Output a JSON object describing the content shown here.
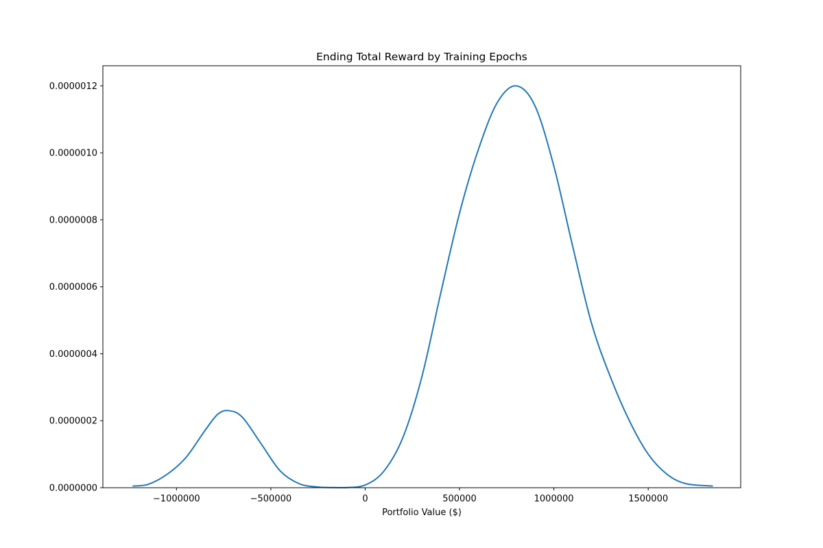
{
  "chart_data": {
    "type": "line",
    "title": "Ending Total Reward by Training Epochs",
    "xlabel": "Portfolio Value ($)",
    "ylabel": "",
    "xlim": [
      -1390000,
      1990000
    ],
    "ylim": [
      0,
      1.26e-06
    ],
    "x_ticks": [
      -1000000,
      -500000,
      0,
      500000,
      1000000,
      1500000
    ],
    "x_tick_labels": [
      "−1000000",
      "−500000",
      "0",
      "500000",
      "1000000",
      "1500000"
    ],
    "y_ticks": [
      0,
      2e-07,
      4e-07,
      6e-07,
      8e-07,
      1e-06,
      1.2e-06
    ],
    "y_tick_labels": [
      "0.0000000",
      "0.0000002",
      "0.0000004",
      "0.0000006",
      "0.0000008",
      "0.0000010",
      "0.0000012"
    ],
    "grid": false,
    "series": [
      {
        "color": "#1f77b4",
        "x": [
          -1230000,
          -1150000,
          -1050000,
          -950000,
          -850000,
          -780000,
          -720000,
          -650000,
          -550000,
          -450000,
          -350000,
          -250000,
          -150000,
          -100000,
          0,
          100000,
          200000,
          300000,
          400000,
          500000,
          600000,
          700000,
          800000,
          900000,
          1000000,
          1100000,
          1200000,
          1300000,
          1400000,
          1500000,
          1600000,
          1700000,
          1840000
        ],
        "y": [
          5e-09,
          1e-08,
          4e-08,
          9e-08,
          1.7e-07,
          2.2e-07,
          2.3e-07,
          2.1e-07,
          1.3e-07,
          5e-08,
          1.2e-08,
          2e-09,
          3e-10,
          3e-10,
          8e-09,
          5e-08,
          1.5e-07,
          3.3e-07,
          5.8e-07,
          8.2e-07,
          1.01e-06,
          1.15e-06,
          1.2e-06,
          1.14e-06,
          9.6e-07,
          7.2e-07,
          4.9e-07,
          3.3e-07,
          2e-07,
          1e-07,
          4e-08,
          1.2e-08,
          5e-09
        ]
      }
    ]
  }
}
